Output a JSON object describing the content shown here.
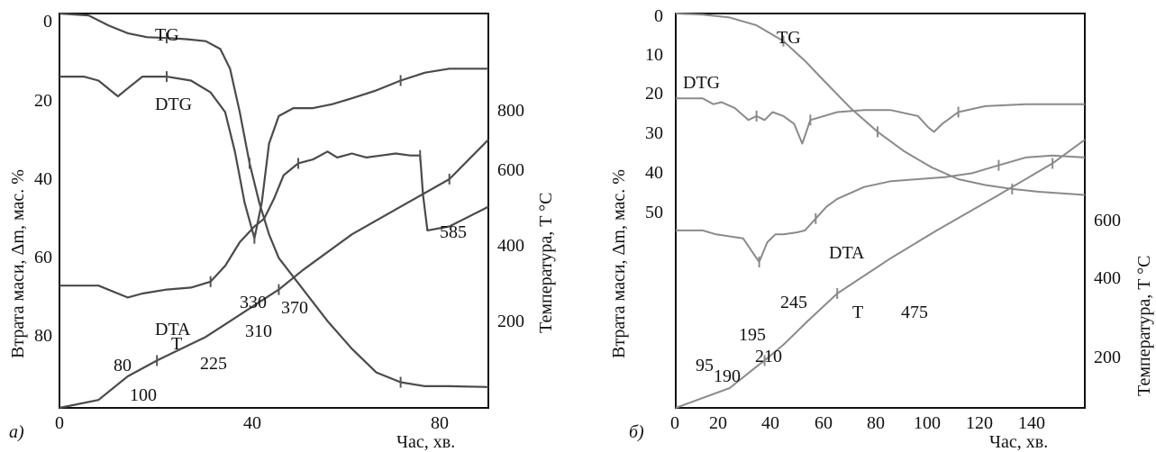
{
  "chart_data": [
    {
      "type": "line",
      "panel_label": "а)",
      "xlabel": "Час, хв.",
      "ylabel_left": "Втрата маси, Δm, мас. %",
      "ylabel_right": "Температура, T °C",
      "x_ticks": [
        "0",
        "40",
        "80"
      ],
      "y_left_ticks": [
        "0",
        "20",
        "40",
        "60",
        "80"
      ],
      "y_right_ticks": [
        "200",
        "400",
        "600",
        "800"
      ],
      "xlim": [
        0,
        88
      ],
      "ylim_left": [
        100,
        0
      ],
      "series": [
        {
          "name": "TG",
          "label": "TG",
          "x": [
            0,
            6,
            10,
            14,
            18,
            22,
            26,
            30,
            33,
            35,
            37,
            39,
            41,
            43,
            45,
            50,
            55,
            60,
            65,
            70,
            75,
            80,
            88
          ],
          "y": [
            0,
            0.5,
            3,
            5,
            6,
            6.2,
            6.5,
            7,
            9,
            14,
            25,
            38,
            48,
            56,
            62,
            70,
            78,
            85,
            91,
            93.5,
            94.5,
            94.5,
            94.7
          ]
        },
        {
          "name": "DTG",
          "label": "DTG",
          "x": [
            0,
            5,
            8,
            12,
            14,
            17,
            22,
            27,
            31,
            34,
            36,
            38,
            40,
            41.5,
            43,
            45,
            48,
            52,
            56,
            60,
            65,
            70,
            75,
            80,
            88
          ],
          "y": [
            16,
            16,
            17,
            21,
            19,
            16,
            16,
            17,
            20,
            25,
            35,
            48,
            57,
            48,
            33,
            26,
            24,
            24,
            23,
            21.5,
            19.5,
            17,
            15,
            14,
            14
          ]
        },
        {
          "name": "DTA",
          "label": "DTA",
          "x": [
            0,
            8,
            12,
            14,
            17,
            22,
            27,
            31,
            34,
            37,
            40,
            42,
            44,
            46,
            49,
            52,
            55,
            57,
            60,
            63,
            66,
            69,
            72,
            74,
            74.6,
            75.5,
            80,
            88
          ],
          "y": [
            69,
            69,
            71,
            72,
            71,
            70,
            69.5,
            68,
            64,
            58,
            54,
            52,
            47,
            41,
            38,
            37,
            35,
            36.5,
            35.5,
            36.5,
            36,
            35.5,
            36,
            36,
            46,
            55,
            54,
            49
          ]
        },
        {
          "name": "T",
          "label": "T",
          "x": [
            0,
            8,
            14,
            20,
            30,
            40,
            45,
            50,
            60,
            70,
            80,
            88
          ],
          "y": [
            100,
            98,
            92,
            88,
            82,
            74,
            70,
            65,
            56,
            49,
            42,
            32
          ]
        }
      ],
      "annotations": [
        "80",
        "100",
        "225",
        "310",
        "330",
        "370",
        "585"
      ]
    },
    {
      "type": "line",
      "panel_label": "б)",
      "xlabel": "Час, хв.",
      "ylabel_left": "Втрата маси, Δm, мас. %",
      "ylabel_right": "Температура, T °C",
      "x_ticks": [
        "0",
        "20",
        "40",
        "60",
        "80",
        "100",
        "120",
        "140"
      ],
      "y_left_ticks": [
        "0",
        "10",
        "20",
        "30",
        "40",
        "50"
      ],
      "y_right_ticks": [
        "200",
        "400",
        "600"
      ],
      "xlim": [
        0,
        152
      ],
      "series": [
        {
          "name": "TG",
          "label": "TG",
          "x": [
            0,
            10,
            20,
            30,
            40,
            48,
            55,
            65,
            75,
            85,
            95,
            105,
            115,
            125,
            135,
            152
          ],
          "y": [
            0,
            0.3,
            1,
            3,
            7,
            12,
            17,
            24,
            30,
            35,
            39,
            42,
            43.5,
            44.5,
            45.2,
            46
          ]
        },
        {
          "name": "DTG",
          "label": "DTG",
          "x": [
            0,
            10,
            14,
            17,
            22,
            27,
            30,
            33,
            36,
            40,
            44,
            47,
            48.5,
            50,
            55,
            60,
            70,
            80,
            90,
            94,
            96,
            99,
            105,
            115,
            130,
            152
          ],
          "y": [
            21.5,
            21.5,
            23,
            22.5,
            24,
            27,
            26,
            27,
            25,
            26,
            28,
            33,
            30,
            27,
            26,
            25,
            24.5,
            24.5,
            26,
            29,
            30,
            28,
            25,
            23.5,
            23,
            23
          ]
        },
        {
          "name": "DTA",
          "label": "DTA",
          "x": [
            0,
            10,
            15,
            20,
            25,
            28,
            31,
            34,
            37,
            40,
            45,
            48,
            52,
            56,
            60,
            65,
            70,
            80,
            90,
            100,
            110,
            120,
            130,
            140,
            152
          ],
          "y": [
            55,
            55,
            56,
            56.5,
            57,
            60,
            63,
            58,
            56,
            56,
            55.5,
            55,
            52,
            49,
            47,
            45.5,
            44,
            42.5,
            42,
            41.5,
            40.5,
            38.5,
            36.5,
            36,
            36.5
          ]
        },
        {
          "name": "T",
          "label": "T",
          "x": [
            0,
            20,
            31,
            33,
            40,
            49,
            60,
            80,
            97,
            120,
            140,
            152
          ],
          "y": [
            100,
            95,
            89,
            88,
            84,
            78,
            71,
            62,
            55,
            46,
            38,
            32
          ]
        }
      ],
      "annotations": [
        "95",
        "190",
        "195",
        "210",
        "245",
        "475"
      ]
    }
  ]
}
